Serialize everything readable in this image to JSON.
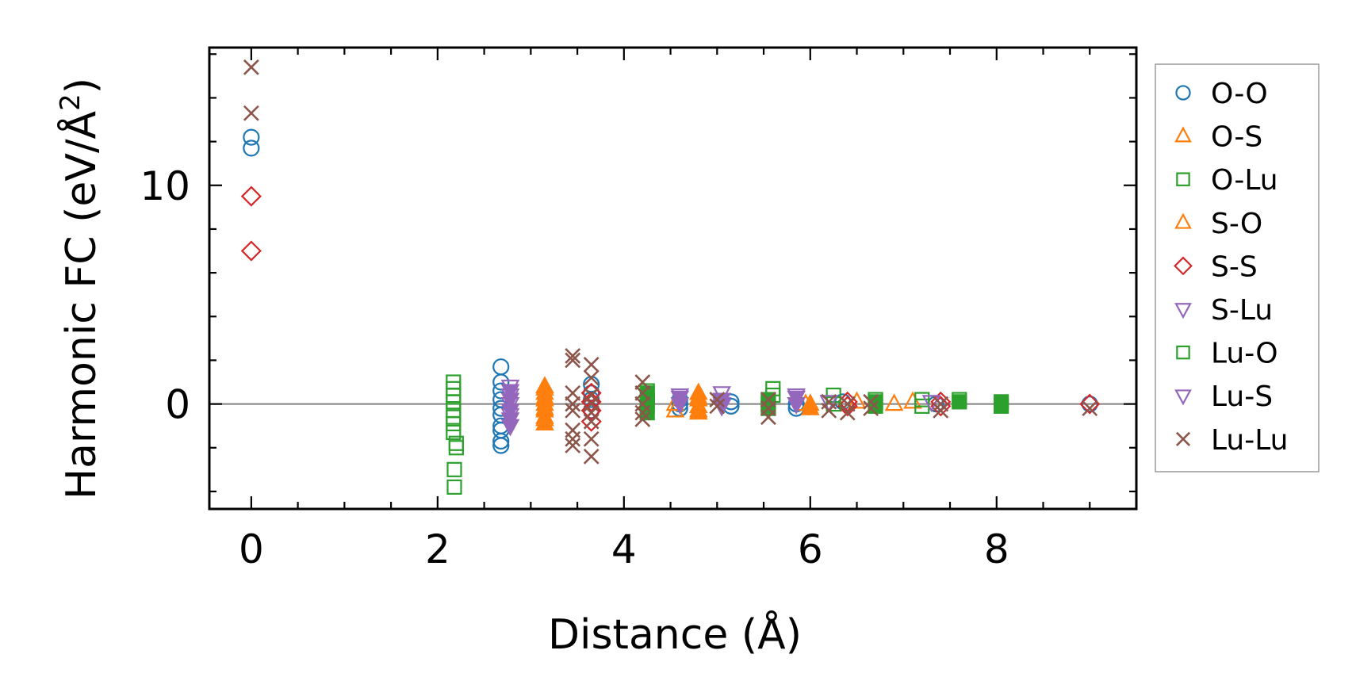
{
  "chart_data": {
    "type": "scatter",
    "xlabel": "Distance (Å)",
    "ylabel_main": "Harmonic FC (eV/Å",
    "ylabel_sup": "2",
    "ylabel_close": ")",
    "xlim": [
      -0.45,
      9.5
    ],
    "ylim": [
      -4.8,
      16.3
    ],
    "xticks": [
      0,
      2,
      4,
      6,
      8
    ],
    "yticks": [
      0,
      10
    ],
    "xtick_labels": [
      "0",
      "2",
      "4",
      "6",
      "8"
    ],
    "ytick_labels": [
      "0",
      "10"
    ],
    "grid": false,
    "zero_line": true,
    "legend_position": "right",
    "series": [
      {
        "name": "O-O",
        "marker": "circle",
        "filled": false,
        "color": "#1f77b4",
        "points": [
          [
            0,
            12.2
          ],
          [
            0,
            11.7
          ],
          [
            2.68,
            1.7
          ],
          [
            2.68,
            1.0
          ],
          [
            2.68,
            0.6
          ],
          [
            2.68,
            0.2
          ],
          [
            2.68,
            -0.2
          ],
          [
            2.68,
            -0.5
          ],
          [
            2.68,
            -1.0
          ],
          [
            2.68,
            -1.2
          ],
          [
            2.68,
            -1.7
          ],
          [
            2.68,
            -1.9
          ],
          [
            3.65,
            0.9
          ],
          [
            3.65,
            0.5
          ],
          [
            3.65,
            0.2
          ],
          [
            3.65,
            -0.3
          ],
          [
            4.6,
            0.2
          ],
          [
            4.6,
            0.0
          ],
          [
            4.6,
            -0.2
          ],
          [
            5.15,
            0.1
          ],
          [
            5.15,
            -0.1
          ],
          [
            5.85,
            0.0
          ],
          [
            5.85,
            -0.2
          ],
          [
            6.35,
            0.1
          ],
          [
            7.35,
            0.0
          ],
          [
            9.0,
            0.0
          ]
        ]
      },
      {
        "name": "O-S",
        "marker": "triangle-up",
        "filled": true,
        "color": "#ff7f0e",
        "points": [
          [
            3.15,
            0.8
          ],
          [
            3.15,
            0.5
          ],
          [
            3.15,
            0.2
          ],
          [
            3.15,
            0.0
          ],
          [
            3.15,
            -0.3
          ],
          [
            3.15,
            -0.6
          ],
          [
            3.15,
            -0.9
          ],
          [
            4.8,
            0.5
          ],
          [
            4.8,
            0.2
          ],
          [
            4.8,
            -0.1
          ],
          [
            4.8,
            -0.4
          ],
          [
            6.0,
            0.0
          ],
          [
            6.0,
            -0.2
          ]
        ]
      },
      {
        "name": "O-Lu",
        "marker": "square",
        "filled": true,
        "color": "#2ca02c",
        "points": [
          [
            4.25,
            0.5
          ],
          [
            4.25,
            0.2
          ],
          [
            4.25,
            -0.1
          ],
          [
            4.25,
            -0.4
          ],
          [
            5.55,
            0.2
          ],
          [
            5.55,
            0.0
          ],
          [
            5.55,
            -0.2
          ],
          [
            6.7,
            0.1
          ],
          [
            6.7,
            -0.1
          ],
          [
            7.6,
            0.1
          ],
          [
            8.05,
            0.1
          ],
          [
            8.05,
            -0.1
          ]
        ]
      },
      {
        "name": "S-O",
        "marker": "triangle-up",
        "filled": false,
        "color": "#ff7f0e",
        "points": [
          [
            3.15,
            0.7
          ],
          [
            3.15,
            0.3
          ],
          [
            3.15,
            -0.2
          ],
          [
            3.15,
            -0.7
          ],
          [
            4.55,
            0.0
          ],
          [
            4.55,
            -0.3
          ],
          [
            4.8,
            0.3
          ],
          [
            4.8,
            -0.3
          ],
          [
            5.95,
            0.0
          ],
          [
            6.5,
            0.1
          ],
          [
            6.9,
            0.0
          ],
          [
            7.1,
            0.1
          ]
        ]
      },
      {
        "name": "S-S",
        "marker": "diamond",
        "filled": false,
        "color": "#d62728",
        "points": [
          [
            0,
            9.5
          ],
          [
            0,
            7.0
          ],
          [
            3.65,
            0.5
          ],
          [
            3.65,
            0.1
          ],
          [
            3.65,
            -0.3
          ],
          [
            3.65,
            -0.8
          ],
          [
            6.4,
            0.1
          ],
          [
            6.4,
            -0.1
          ],
          [
            7.4,
            0.1
          ],
          [
            7.4,
            -0.1
          ],
          [
            9.0,
            0.0
          ]
        ]
      },
      {
        "name": "S-Lu",
        "marker": "triangle-down",
        "filled": true,
        "color": "#9467bd",
        "points": [
          [
            2.78,
            0.6
          ],
          [
            2.78,
            0.2
          ],
          [
            2.78,
            -0.3
          ],
          [
            2.78,
            -0.7
          ],
          [
            2.78,
            -1.0
          ],
          [
            4.6,
            0.3
          ],
          [
            4.6,
            0.0
          ],
          [
            5.05,
            0.2
          ],
          [
            5.05,
            -0.1
          ],
          [
            5.85,
            0.3
          ],
          [
            5.85,
            0.0
          ]
        ]
      },
      {
        "name": "Lu-O",
        "marker": "square",
        "filled": false,
        "color": "#2ca02c",
        "points": [
          [
            2.17,
            1.0
          ],
          [
            2.17,
            0.7
          ],
          [
            2.17,
            0.4
          ],
          [
            2.17,
            0.1
          ],
          [
            2.17,
            -0.3
          ],
          [
            2.17,
            -0.6
          ],
          [
            2.17,
            -0.9
          ],
          [
            2.17,
            -1.3
          ],
          [
            2.2,
            -1.8
          ],
          [
            2.2,
            -2.0
          ],
          [
            2.18,
            -3.0
          ],
          [
            2.18,
            -3.8
          ],
          [
            4.25,
            0.6
          ],
          [
            4.25,
            0.1
          ],
          [
            5.6,
            0.7
          ],
          [
            5.6,
            0.4
          ],
          [
            6.25,
            0.4
          ],
          [
            6.25,
            0.0
          ],
          [
            6.7,
            0.2
          ],
          [
            7.2,
            0.2
          ],
          [
            7.2,
            -0.1
          ],
          [
            7.6,
            0.2
          ]
        ]
      },
      {
        "name": "Lu-S",
        "marker": "triangle-down",
        "filled": false,
        "color": "#9467bd",
        "points": [
          [
            2.78,
            0.8
          ],
          [
            2.78,
            0.4
          ],
          [
            2.78,
            0.0
          ],
          [
            2.78,
            -0.5
          ],
          [
            4.6,
            0.4
          ],
          [
            5.05,
            0.5
          ],
          [
            5.05,
            0.0
          ],
          [
            5.85,
            0.4
          ],
          [
            6.2,
            0.1
          ],
          [
            7.3,
            0.1
          ]
        ]
      },
      {
        "name": "Lu-Lu",
        "marker": "x",
        "filled": false,
        "color": "#8c564b",
        "points": [
          [
            0,
            15.4
          ],
          [
            0,
            13.3
          ],
          [
            3.45,
            2.2
          ],
          [
            3.45,
            2.0
          ],
          [
            3.45,
            0.5
          ],
          [
            3.45,
            0.0
          ],
          [
            3.45,
            -0.3
          ],
          [
            3.45,
            -1.2
          ],
          [
            3.45,
            -1.6
          ],
          [
            3.45,
            -1.9
          ],
          [
            3.65,
            1.8
          ],
          [
            3.65,
            1.2
          ],
          [
            3.65,
            0.4
          ],
          [
            3.65,
            0.0
          ],
          [
            3.65,
            -0.4
          ],
          [
            3.65,
            -0.8
          ],
          [
            3.65,
            -1.6
          ],
          [
            3.65,
            -2.4
          ],
          [
            4.2,
            1.0
          ],
          [
            4.2,
            0.5
          ],
          [
            4.2,
            0.0
          ],
          [
            4.2,
            -0.4
          ],
          [
            4.2,
            -0.7
          ],
          [
            5.0,
            0.2
          ],
          [
            5.0,
            -0.1
          ],
          [
            5.55,
            0.2
          ],
          [
            5.55,
            -0.2
          ],
          [
            5.55,
            -0.6
          ],
          [
            6.2,
            0.1
          ],
          [
            6.2,
            -0.3
          ],
          [
            6.4,
            0.0
          ],
          [
            6.4,
            -0.4
          ],
          [
            6.65,
            0.1
          ],
          [
            6.65,
            -0.2
          ],
          [
            7.4,
            0.0
          ],
          [
            7.4,
            -0.3
          ],
          [
            9.0,
            -0.2
          ]
        ]
      }
    ]
  }
}
